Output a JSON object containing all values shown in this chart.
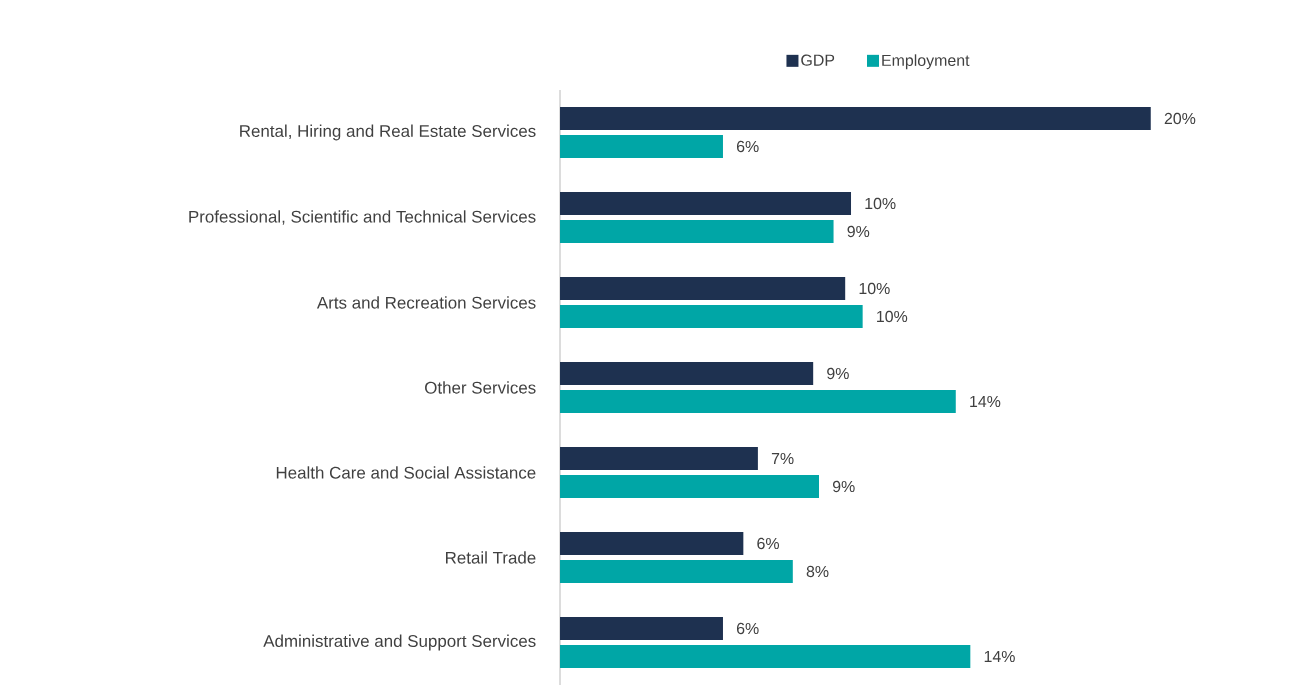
{
  "chart_data": {
    "type": "bar",
    "orientation": "horizontal",
    "categories": [
      "Rental, Hiring and Real Estate Services",
      "Professional, Scientific and Technical Services",
      "Arts and Recreation Services",
      "Other Services",
      "Health Care and Social Assistance",
      "Retail Trade",
      "Administrative and Support Services"
    ],
    "series": [
      {
        "name": "GDP",
        "color": "#1e3150",
        "values": [
          20.3,
          10.0,
          9.8,
          8.7,
          6.8,
          6.3,
          5.6
        ],
        "value_labels": [
          "20%",
          "10%",
          "10%",
          "9%",
          "7%",
          "6%",
          "6%"
        ]
      },
      {
        "name": "Employment",
        "color": "#00a6a6",
        "values": [
          5.6,
          9.4,
          10.4,
          13.6,
          8.9,
          8.0,
          14.1
        ],
        "value_labels": [
          "6%",
          "9%",
          "10%",
          "14%",
          "9%",
          "8%",
          "14%"
        ]
      }
    ],
    "legend": "top"
  }
}
